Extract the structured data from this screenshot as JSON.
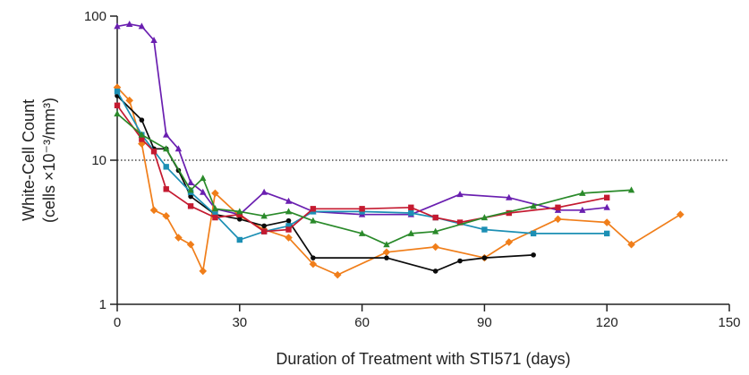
{
  "chart_data": {
    "type": "line",
    "xlabel": "Duration of Treatment with STI571 (days)",
    "ylabel_line1": "White-Cell Count",
    "ylabel_line2": "(cells ×10⁻³/mm³)",
    "xlim": [
      0,
      150
    ],
    "ylim": [
      1,
      100
    ],
    "y_scale": "log",
    "x_ticks": [
      0,
      30,
      60,
      90,
      120,
      150
    ],
    "x_tick_labels": [
      "0",
      "30",
      "60",
      "90",
      "120",
      "150"
    ],
    "y_ticks": [
      1,
      10,
      100
    ],
    "y_tick_labels": [
      "1",
      "10",
      "100"
    ],
    "reference_line": {
      "y": 10,
      "style": "dotted"
    },
    "grid": false,
    "series": [
      {
        "color": "#6a1fb0",
        "marker": "triangle",
        "x": [
          0,
          3,
          6,
          9,
          12,
          15,
          18,
          21,
          24,
          30,
          36,
          42,
          48,
          60,
          72,
          84,
          96,
          108,
          114,
          120
        ],
        "y": [
          85,
          88,
          85,
          68,
          15,
          12,
          7,
          6,
          4.6,
          4.2,
          6,
          5.2,
          4.4,
          4.2,
          4.2,
          5.8,
          5.5,
          4.5,
          4.5,
          4.7
        ]
      },
      {
        "color": "#f07e1a",
        "marker": "diamond",
        "x": [
          0,
          3,
          6,
          9,
          12,
          15,
          18,
          21,
          24,
          30,
          36,
          42,
          48,
          54,
          66,
          78,
          90,
          96,
          108,
          120,
          126,
          138
        ],
        "y": [
          32,
          26,
          13,
          4.5,
          4.1,
          2.9,
          2.6,
          1.7,
          5.9,
          4.1,
          3.3,
          2.9,
          1.9,
          1.6,
          2.3,
          2.5,
          2.1,
          2.7,
          3.9,
          3.7,
          2.6,
          4.2
        ]
      },
      {
        "color": "#0b0b0b",
        "marker": "circle",
        "x": [
          0,
          6,
          9,
          12,
          15,
          18,
          24,
          30,
          36,
          42,
          48,
          66,
          78,
          84,
          90,
          102
        ],
        "y": [
          28,
          19,
          12,
          12,
          8.5,
          5.6,
          4.2,
          3.9,
          3.5,
          3.8,
          2.1,
          2.1,
          1.7,
          2,
          2.1,
          2.2
        ]
      },
      {
        "color": "#1c8fb4",
        "marker": "square",
        "x": [
          0,
          6,
          12,
          18,
          24,
          30,
          36,
          42,
          48,
          60,
          72,
          78,
          90,
          102,
          120
        ],
        "y": [
          30,
          15,
          9,
          6,
          4.2,
          2.8,
          3.2,
          3.5,
          4.4,
          4.4,
          4.3,
          4,
          3.3,
          3.1,
          3.1
        ]
      },
      {
        "color": "#c41a30",
        "marker": "square",
        "x": [
          0,
          6,
          9,
          12,
          18,
          24,
          30,
          36,
          42,
          48,
          60,
          72,
          78,
          84,
          96,
          108,
          120
        ],
        "y": [
          24,
          14,
          11.5,
          6.3,
          4.8,
          4,
          4.2,
          3.2,
          3.3,
          4.6,
          4.6,
          4.7,
          4,
          3.7,
          4.3,
          4.7,
          5.5
        ]
      },
      {
        "color": "#2a8a2a",
        "marker": "triangle",
        "x": [
          0,
          6,
          12,
          18,
          21,
          24,
          30,
          36,
          42,
          48,
          60,
          66,
          72,
          78,
          90,
          102,
          114,
          126
        ],
        "y": [
          21,
          15,
          12,
          6.2,
          7.5,
          4.6,
          4.4,
          4.1,
          4.4,
          3.8,
          3.1,
          2.6,
          3.1,
          3.2,
          4,
          4.8,
          5.9,
          6.2
        ]
      }
    ]
  }
}
